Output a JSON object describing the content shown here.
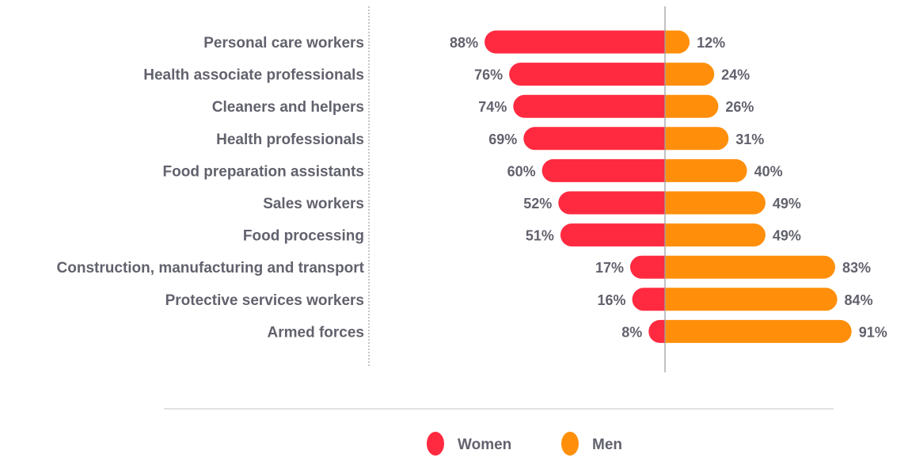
{
  "chart_data": {
    "type": "bar",
    "orientation": "horizontal-diverging",
    "title": "",
    "xlabel": "",
    "ylabel": "",
    "xlim": [
      -100,
      100
    ],
    "grid": false,
    "legend_position": "bottom-center",
    "categories": [
      "Personal care workers",
      "Health associate professionals",
      "Cleaners and helpers",
      "Health professionals",
      "Food preparation assistants",
      "Sales workers",
      "Food processing",
      "Construction, manufacturing and transport",
      "Protective services workers",
      "Armed forces"
    ],
    "series": [
      {
        "name": "Women",
        "color": "#ff2a40",
        "direction": "left",
        "values": [
          88,
          76,
          74,
          69,
          60,
          52,
          51,
          17,
          16,
          8
        ],
        "labels": [
          "88%",
          "76%",
          "74%",
          "69%",
          "60%",
          "52%",
          "51%",
          "17%",
          "16%",
          "8%"
        ]
      },
      {
        "name": "Men",
        "color": "#ff8f0a",
        "direction": "right",
        "values": [
          12,
          24,
          26,
          31,
          40,
          49,
          49,
          83,
          84,
          91
        ],
        "labels": [
          "12%",
          "24%",
          "26%",
          "31%",
          "40%",
          "49%",
          "49%",
          "83%",
          "84%",
          "91%"
        ]
      }
    ]
  },
  "colors": {
    "text": "#62626e",
    "axis": "#a0a0a8",
    "divider": "#e2e2e2"
  }
}
